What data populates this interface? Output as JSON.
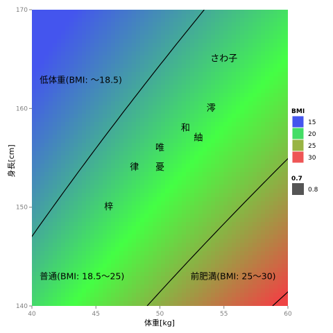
{
  "chart_data": {
    "type": "scatter",
    "title": "",
    "xlabel": "体重[kg]",
    "ylabel": "身長[cm]",
    "xlim": [
      40,
      60
    ],
    "ylim": [
      140,
      170
    ],
    "xticks": [
      40,
      45,
      50,
      55,
      60
    ],
    "yticks": [
      140,
      150,
      160,
      170
    ],
    "xtick_labels": [
      "40",
      "45",
      "50",
      "55",
      "60"
    ],
    "ytick_labels": [
      "140",
      "150",
      "160",
      "170"
    ],
    "grid": false,
    "background": "BMI gradient",
    "bmi_contours": [
      18.5,
      25,
      30
    ],
    "zones": [
      {
        "label": "低体重(BMI: ～18.5)",
        "x": 40.6,
        "y": 162.6
      },
      {
        "label": "普通(BMI: 18.5～25)",
        "x": 40.6,
        "y": 142.7
      },
      {
        "label": "前肥満(BMI: 25～30)",
        "x": 52.4,
        "y": 142.7
      }
    ],
    "points": [
      {
        "label": "さわ子",
        "x": 55.0,
        "y": 165.0
      },
      {
        "label": "澪",
        "x": 54.0,
        "y": 160.0
      },
      {
        "label": "和",
        "x": 52.0,
        "y": 158.0
      },
      {
        "label": "紬",
        "x": 53.0,
        "y": 157.0
      },
      {
        "label": "唯",
        "x": 50.0,
        "y": 156.0
      },
      {
        "label": "律",
        "x": 48.0,
        "y": 154.0
      },
      {
        "label": "憂",
        "x": 50.0,
        "y": 154.0
      },
      {
        "label": "梓",
        "x": 46.0,
        "y": 150.0
      }
    ],
    "legend": {
      "placement": "right",
      "fill": {
        "title": "BMI",
        "items": [
          {
            "label": "15",
            "color": "#4455ee"
          },
          {
            "label": "20",
            "color": "#44dd66"
          },
          {
            "label": "25",
            "color": "#99b444"
          },
          {
            "label": "30",
            "color": "#ee5555"
          }
        ]
      },
      "alpha": {
        "title": "0.7",
        "items": [
          {
            "label": "0.8",
            "color": "#555555"
          }
        ]
      }
    },
    "colors": {
      "bmi_15": "#4455ee",
      "bmi_22": "#44ff44",
      "bmi_30": "#ee4444",
      "contour": "#000000"
    }
  }
}
